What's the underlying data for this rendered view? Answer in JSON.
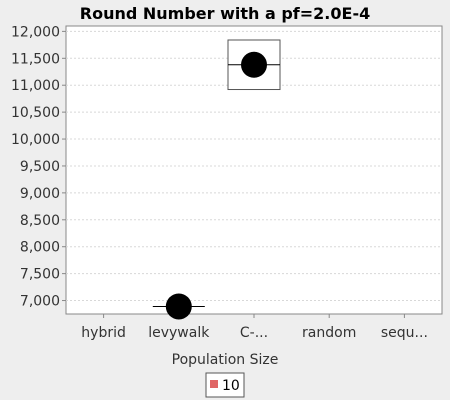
{
  "chart_data": {
    "type": "boxplot",
    "title": "Round Number with a pf=2.0E-4",
    "xlabel": "Population Size",
    "ylabel": "",
    "categories": [
      "hybrid",
      "levywalk",
      "C-...",
      "random",
      "sequ..."
    ],
    "ylim": [
      6750,
      12100
    ],
    "yticks": [
      7000,
      7500,
      8000,
      8500,
      9000,
      9500,
      10000,
      10500,
      11000,
      11500,
      12000
    ],
    "ytick_labels": [
      "7,000",
      "7,500",
      "8,000",
      "8,500",
      "9,000",
      "9,500",
      "10,000",
      "10,500",
      "11,000",
      "11,500",
      "12,000"
    ],
    "grid": true,
    "legend_position": "bottom",
    "series": [
      {
        "name": "10",
        "color": "#e06666",
        "boxes": [
          null,
          {
            "category": "levywalk",
            "q1": 6890,
            "median": 6890,
            "q3": 6890,
            "mean": 6890
          },
          {
            "category": "C-...",
            "q1": 10920,
            "median": 11380,
            "q3": 11840,
            "mean": 11380
          },
          null,
          null
        ]
      }
    ]
  }
}
